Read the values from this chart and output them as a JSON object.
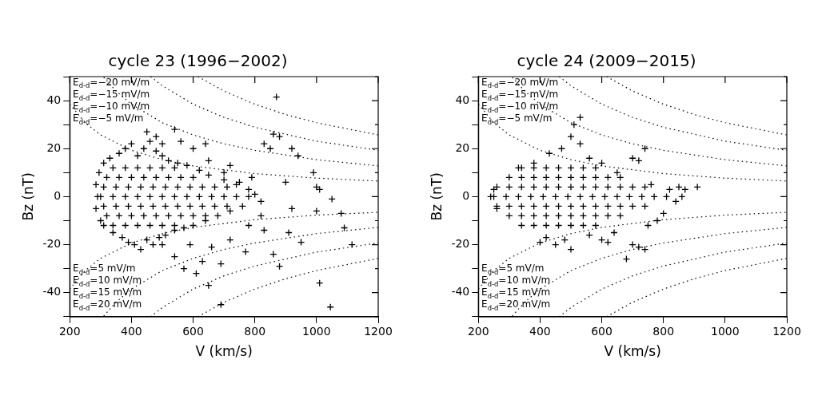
{
  "chart_data": [
    {
      "type": "scatter",
      "title": "cycle 23 (1996−2002)",
      "xlabel": "V (km/s)",
      "ylabel": "Bz (nT)",
      "xlim": [
        200,
        1200
      ],
      "xticks": [
        200,
        400,
        600,
        800,
        1000,
        1200
      ],
      "ylim": [
        -50,
        50
      ],
      "yticks": [
        {
          "value": -50,
          "label": null
        },
        -40,
        {
          "value": -30,
          "label": null
        },
        -20,
        {
          "value": -10,
          "label": null
        },
        0,
        {
          "value": 10,
          "label": null
        },
        20,
        {
          "value": 30,
          "label": null
        },
        40,
        {
          "value": 50,
          "label": null
        }
      ],
      "grid": false,
      "legend": false,
      "series": [
        {
          "type": "scatter",
          "marker": "cross",
          "color": "#000000",
          "x": [
            290,
            285,
            285,
            295,
            300,
            310,
            310,
            330,
            340,
            360,
            370,
            380,
            390,
            400,
            410,
            420,
            430,
            440,
            450,
            460,
            470,
            480,
            490,
            500,
            510,
            520,
            540,
            550,
            570,
            580,
            600,
            620,
            640,
            650,
            680,
            700,
            720,
            740,
            760,
            780,
            800,
            820,
            300,
            340,
            380,
            420,
            460,
            500,
            540,
            580,
            620,
            660,
            700,
            740,
            780,
            310,
            350,
            390,
            430,
            470,
            510,
            550,
            590,
            630,
            670,
            710,
            310,
            350,
            390,
            430,
            470,
            510,
            550,
            590,
            630,
            670,
            710,
            320,
            360,
            400,
            440,
            480,
            520,
            560,
            600,
            320,
            360,
            400,
            440,
            480,
            520,
            560,
            600,
            640,
            340,
            380,
            420,
            460,
            500,
            540,
            340,
            380,
            420,
            460,
            500,
            540,
            870,
            860,
            880,
            830,
            850,
            920,
            940,
            990,
            1000,
            1010,
            1050,
            1080,
            1090,
            1115,
            1000,
            950,
            910,
            1010,
            1045,
            690,
            650,
            690,
            630,
            610,
            570,
            540,
            500,
            880,
            770,
            720,
            780,
            820,
            750,
            700,
            650,
            600,
            560,
            540,
            480,
            450,
            500,
            720,
            790,
            900,
            640,
            590,
            660,
            830,
            860,
            920
          ],
          "values": [
            0,
            5,
            -5,
            10,
            -10,
            14,
            -12,
            16,
            -15,
            18,
            -17,
            20,
            -19,
            22,
            -20,
            17,
            -22,
            20,
            -18,
            23,
            -20,
            19,
            -17,
            17,
            -16,
            15,
            -14,
            14,
            -13,
            13,
            -12,
            11,
            -10,
            9,
            -8,
            7,
            -6,
            5,
            -4,
            3,
            1,
            -2,
            0,
            0,
            0,
            0,
            0,
            0,
            0,
            0,
            0,
            0,
            0,
            0,
            0,
            4,
            4,
            4,
            4,
            4,
            4,
            4,
            4,
            4,
            4,
            4,
            -4,
            -4,
            -4,
            -4,
            -4,
            -4,
            -4,
            -4,
            -4,
            -4,
            -4,
            8,
            8,
            8,
            8,
            8,
            8,
            8,
            8,
            -8,
            -8,
            -8,
            -8,
            -8,
            -8,
            -8,
            -8,
            -8,
            12,
            12,
            12,
            12,
            12,
            12,
            -12,
            -12,
            -12,
            -12,
            -12,
            -12,
            41.5,
            26,
            25,
            22,
            20,
            20,
            17,
            10,
            4,
            3,
            -1,
            -7,
            -13,
            -20,
            -6,
            -19,
            -15,
            -36,
            -46,
            -45,
            -37,
            -28,
            -27,
            -32,
            -30,
            -25,
            -20,
            -29,
            -23,
            -18,
            -12,
            -8,
            6,
            10,
            15,
            20,
            23,
            28,
            25,
            27,
            22,
            13,
            8,
            6,
            22,
            -20,
            -21,
            -14,
            -24,
            -5
          ]
        },
        {
          "type": "line",
          "line_style": "dotted",
          "color": "#000000",
          "x": [
            200,
            250,
            300,
            400,
            500,
            600,
            800,
            1000,
            1200
          ],
          "values": [
            38.5,
            30.8,
            25.7,
            19.3,
            15.4,
            12.8,
            9.6,
            7.7,
            6.5
          ]
        },
        {
          "type": "line",
          "line_style": "dotted",
          "color": "#000000",
          "x": [
            310,
            350,
            400,
            500,
            600,
            700,
            800,
            1000,
            1200
          ],
          "values": [
            49.7,
            44,
            38.5,
            30.8,
            25.7,
            22,
            19.3,
            15.4,
            12.8
          ]
        },
        {
          "type": "line",
          "line_style": "dotted",
          "color": "#000000",
          "x": [
            462,
            500,
            600,
            700,
            800,
            1000,
            1200
          ],
          "values": [
            50,
            46.2,
            38.5,
            33,
            28.9,
            23.1,
            19.3
          ]
        },
        {
          "type": "line",
          "line_style": "dotted",
          "color": "#000000",
          "x": [
            616,
            700,
            800,
            900,
            1000,
            1200
          ],
          "values": [
            50,
            44,
            38.5,
            34.2,
            30.8,
            25.7
          ]
        },
        {
          "type": "line",
          "line_style": "dotted",
          "color": "#000000",
          "x": [
            200,
            250,
            300,
            400,
            500,
            600,
            800,
            1000,
            1200
          ],
          "values": [
            -38.5,
            -30.8,
            -25.7,
            -19.3,
            -15.4,
            -12.8,
            -9.6,
            -7.7,
            -6.5
          ]
        },
        {
          "type": "line",
          "line_style": "dotted",
          "color": "#000000",
          "x": [
            310,
            350,
            400,
            500,
            600,
            700,
            800,
            1000,
            1200
          ],
          "values": [
            -49.7,
            -44,
            -38.5,
            -30.8,
            -25.7,
            -22,
            -19.3,
            -15.4,
            -12.8
          ]
        },
        {
          "type": "line",
          "line_style": "dotted",
          "color": "#000000",
          "x": [
            462,
            500,
            600,
            700,
            800,
            1000,
            1200
          ],
          "values": [
            -50,
            -46.2,
            -38.5,
            -33,
            -28.9,
            -23.1,
            -19.3
          ]
        },
        {
          "type": "line",
          "line_style": "dotted",
          "color": "#000000",
          "x": [
            616,
            700,
            800,
            900,
            1000,
            1200
          ],
          "values": [
            -50,
            -44,
            -38.5,
            -34.2,
            -30.8,
            -25.7
          ]
        }
      ],
      "annotations": [
        "E$_{d-d}$=−20 mV/m",
        "E$_{d-d}$=−15 mV/m",
        "E$_{d-d}$=−10 mV/m",
        "E$_{d-d}$=−5 mV/m",
        "E$_{d-d}$=5 mV/m",
        "E$_{d-d}$=10 mV/m",
        "E$_{d-d}$=15 mV/m",
        "E$_{d-d}$=20 mV/m"
      ]
    },
    {
      "type": "scatter",
      "title": "cycle 24 (2009−2015)",
      "xlabel": "V (km/s)",
      "ylabel": "Bz (nT)",
      "xlim": [
        200,
        1200
      ],
      "xticks": [
        200,
        400,
        600,
        800,
        1000,
        1200
      ],
      "ylim": [
        -50,
        50
      ],
      "yticks": [
        {
          "value": -50,
          "label": null
        },
        -40,
        {
          "value": -30,
          "label": null
        },
        -20,
        {
          "value": -10,
          "label": null
        },
        0,
        {
          "value": 10,
          "label": null
        },
        20,
        {
          "value": 30,
          "label": null
        },
        40,
        {
          "value": 50,
          "label": null
        }
      ],
      "grid": false,
      "legend": false,
      "series": [
        {
          "type": "scatter",
          "marker": "cross",
          "color": "#000000",
          "x": [
            250,
            290,
            330,
            370,
            410,
            450,
            490,
            530,
            570,
            610,
            650,
            690,
            730,
            770,
            810,
            260,
            300,
            340,
            380,
            420,
            460,
            500,
            540,
            580,
            620,
            660,
            700,
            740,
            260,
            300,
            340,
            380,
            420,
            460,
            500,
            540,
            580,
            620,
            660,
            700,
            740,
            300,
            340,
            380,
            420,
            460,
            500,
            540,
            580,
            620,
            660,
            300,
            340,
            380,
            420,
            460,
            500,
            540,
            580,
            620,
            660,
            340,
            380,
            420,
            460,
            500,
            540,
            580,
            340,
            380,
            420,
            460,
            500,
            540,
            580,
            910,
            870,
            850,
            740,
            720,
            700,
            530,
            510,
            500,
            530,
            680,
            720,
            740,
            700,
            600,
            620,
            560,
            480,
            400,
            420,
            640,
            750,
            780,
            800,
            840,
            860,
            820,
            760,
            650,
            600,
            560,
            470,
            430,
            380,
            330,
            260,
            250,
            240,
            450,
            500
          ],
          "values": [
            0,
            0,
            0,
            0,
            0,
            0,
            0,
            0,
            0,
            0,
            0,
            0,
            0,
            0,
            0,
            4,
            4,
            4,
            4,
            4,
            4,
            4,
            4,
            4,
            4,
            4,
            4,
            4,
            -4,
            -4,
            -4,
            -4,
            -4,
            -4,
            -4,
            -4,
            -4,
            -4,
            -4,
            -4,
            -4,
            8,
            8,
            8,
            8,
            8,
            8,
            8,
            8,
            8,
            8,
            -8,
            -8,
            -8,
            -8,
            -8,
            -8,
            -8,
            -8,
            -8,
            -8,
            12,
            12,
            12,
            12,
            12,
            12,
            12,
            -12,
            -12,
            -12,
            -12,
            -12,
            -12,
            -12,
            4,
            3,
            4,
            20,
            15,
            16,
            33,
            30,
            25,
            22,
            -26,
            -21,
            -22,
            -20,
            -18,
            -19,
            -16,
            -18,
            -19,
            -17,
            -15,
            -12,
            -10,
            -7,
            -2,
            0,
            3,
            5,
            10,
            14,
            16,
            20,
            18,
            14,
            12,
            -5,
            3,
            0,
            -20,
            -22
          ]
        },
        {
          "type": "line",
          "line_style": "dotted",
          "color": "#000000",
          "x": [
            200,
            250,
            300,
            400,
            500,
            600,
            800,
            1000,
            1200
          ],
          "values": [
            38.5,
            30.8,
            25.7,
            19.3,
            15.4,
            12.8,
            9.6,
            7.7,
            6.5
          ]
        },
        {
          "type": "line",
          "line_style": "dotted",
          "color": "#000000",
          "x": [
            310,
            350,
            400,
            500,
            600,
            700,
            800,
            1000,
            1200
          ],
          "values": [
            49.7,
            44,
            38.5,
            30.8,
            25.7,
            22,
            19.3,
            15.4,
            12.8
          ]
        },
        {
          "type": "line",
          "line_style": "dotted",
          "color": "#000000",
          "x": [
            462,
            500,
            600,
            700,
            800,
            1000,
            1200
          ],
          "values": [
            50,
            46.2,
            38.5,
            33,
            28.9,
            23.1,
            19.3
          ]
        },
        {
          "type": "line",
          "line_style": "dotted",
          "color": "#000000",
          "x": [
            616,
            700,
            800,
            900,
            1000,
            1200
          ],
          "values": [
            50,
            44,
            38.5,
            34.2,
            30.8,
            25.7
          ]
        },
        {
          "type": "line",
          "line_style": "dotted",
          "color": "#000000",
          "x": [
            200,
            250,
            300,
            400,
            500,
            600,
            800,
            1000,
            1200
          ],
          "values": [
            -38.5,
            -30.8,
            -25.7,
            -19.3,
            -15.4,
            -12.8,
            -9.6,
            -7.7,
            -6.5
          ]
        },
        {
          "type": "line",
          "line_style": "dotted",
          "color": "#000000",
          "x": [
            310,
            350,
            400,
            500,
            600,
            700,
            800,
            1000,
            1200
          ],
          "values": [
            -49.7,
            -44,
            -38.5,
            -30.8,
            -25.7,
            -22,
            -19.3,
            -15.4,
            -12.8
          ]
        },
        {
          "type": "line",
          "line_style": "dotted",
          "color": "#000000",
          "x": [
            462,
            500,
            600,
            700,
            800,
            1000,
            1200
          ],
          "values": [
            -50,
            -46.2,
            -38.5,
            -33,
            -28.9,
            -23.1,
            -19.3
          ]
        },
        {
          "type": "line",
          "line_style": "dotted",
          "color": "#000000",
          "x": [
            616,
            700,
            800,
            900,
            1000,
            1200
          ],
          "values": [
            -50,
            -44,
            -38.5,
            -34.2,
            -30.8,
            -25.7
          ]
        }
      ],
      "annotations": [
        "E$_{d-d}$=−20 mV/m",
        "E$_{d-d}$=−15 mV/m",
        "E$_{d-d}$=−10 mV/m",
        "E$_{d-d}$=−5 mV/m",
        "E$_{d-d}$=5 mV/m",
        "E$_{d-d}$=10 mV/m",
        "E$_{d-d}$=15 mV/m",
        "E$_{d-d}$=20 mV/m"
      ]
    }
  ]
}
